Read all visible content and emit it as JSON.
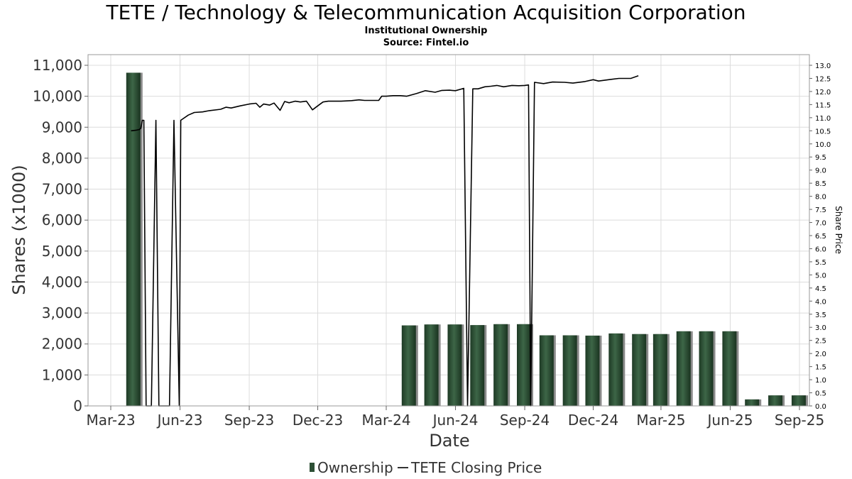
{
  "chart_data": {
    "type": "bar+line",
    "title": "TETE / Technology & Telecommunication Acquisition Corporation",
    "subtitle": "Institutional Ownership",
    "source": "Source: Fintel.io",
    "xlabel": "Date",
    "ylabel": "Shares (x1000)",
    "y2label": "Share Price",
    "ylim": [
      0,
      11000
    ],
    "y2lim": [
      0,
      13
    ],
    "grid": true,
    "legend_position": "bottom-center",
    "x_ticks": [
      {
        "label": "Mar-23",
        "date": "2023-03-01"
      },
      {
        "label": "Jun-23",
        "date": "2023-06-01"
      },
      {
        "label": "Sep-23",
        "date": "2023-09-01"
      },
      {
        "label": "Dec-23",
        "date": "2023-12-01"
      },
      {
        "label": "Mar-24",
        "date": "2024-03-01"
      },
      {
        "label": "Jun-24",
        "date": "2024-06-01"
      },
      {
        "label": "Sep-24",
        "date": "2024-09-01"
      },
      {
        "label": "Dec-24",
        "date": "2024-12-01"
      },
      {
        "label": "Mar-25",
        "date": "2025-03-01"
      },
      {
        "label": "Jun-25",
        "date": "2025-06-01"
      },
      {
        "label": "Sep-25",
        "date": "2025-09-01"
      }
    ],
    "y_ticks": [
      "0",
      "1,000",
      "2,000",
      "3,000",
      "4,000",
      "5,000",
      "6,000",
      "7,000",
      "8,000",
      "9,000",
      "10,000",
      "11,000"
    ],
    "y2_ticks": [
      "0.0",
      "0.5",
      "1.0",
      "1.5",
      "2.0",
      "2.5",
      "3.0",
      "3.5",
      "4.0",
      "4.5",
      "5.0",
      "5.5",
      "6.0",
      "6.5",
      "7.0",
      "7.5",
      "8.0",
      "8.5",
      "9.0",
      "9.5",
      "10.0",
      "10.5",
      "11.0",
      "11.5",
      "12.0",
      "12.5",
      "13.0"
    ],
    "series": [
      {
        "name": "Ownership",
        "kind": "bar",
        "color": "#2d4f35",
        "points": [
          {
            "date": "2023-03-31",
            "value": 10760
          },
          {
            "date": "2024-03-31",
            "value": 2600
          },
          {
            "date": "2024-04-30",
            "value": 2630
          },
          {
            "date": "2024-05-31",
            "value": 2630
          },
          {
            "date": "2024-06-30",
            "value": 2610
          },
          {
            "date": "2024-07-31",
            "value": 2640
          },
          {
            "date": "2024-08-31",
            "value": 2640
          },
          {
            "date": "2024-09-30",
            "value": 2280
          },
          {
            "date": "2024-10-31",
            "value": 2280
          },
          {
            "date": "2024-11-30",
            "value": 2270
          },
          {
            "date": "2024-12-31",
            "value": 2340
          },
          {
            "date": "2025-01-31",
            "value": 2320
          },
          {
            "date": "2025-02-28",
            "value": 2320
          },
          {
            "date": "2025-03-31",
            "value": 2410
          },
          {
            "date": "2025-04-30",
            "value": 2410
          },
          {
            "date": "2025-05-31",
            "value": 2410
          },
          {
            "date": "2025-06-30",
            "value": 210
          },
          {
            "date": "2025-07-31",
            "value": 340
          },
          {
            "date": "2025-08-31",
            "value": 340
          }
        ]
      },
      {
        "name": "TETE Closing Price",
        "kind": "line",
        "color": "#000000",
        "points": [
          {
            "date": "2023-03-28",
            "value": 10.5
          },
          {
            "date": "2023-04-03",
            "value": 10.52
          },
          {
            "date": "2023-04-08",
            "value": 10.55
          },
          {
            "date": "2023-04-10",
            "value": 10.6
          },
          {
            "date": "2023-04-12",
            "value": 10.9
          },
          {
            "date": "2023-04-14",
            "value": 10.9
          },
          {
            "date": "2023-04-17",
            "value": 0
          },
          {
            "date": "2023-04-24",
            "value": 0
          },
          {
            "date": "2023-04-30",
            "value": 10.9
          },
          {
            "date": "2023-05-04",
            "value": 0
          },
          {
            "date": "2023-05-18",
            "value": 0
          },
          {
            "date": "2023-05-24",
            "value": 10.9
          },
          {
            "date": "2023-05-31",
            "value": 0
          },
          {
            "date": "2023-06-02",
            "value": 10.9
          },
          {
            "date": "2023-06-12",
            "value": 11.1
          },
          {
            "date": "2023-06-20",
            "value": 11.2
          },
          {
            "date": "2023-07-01",
            "value": 11.22
          },
          {
            "date": "2023-07-10",
            "value": 11.27
          },
          {
            "date": "2023-07-25",
            "value": 11.32
          },
          {
            "date": "2023-08-01",
            "value": 11.4
          },
          {
            "date": "2023-08-08",
            "value": 11.37
          },
          {
            "date": "2023-08-20",
            "value": 11.45
          },
          {
            "date": "2023-09-01",
            "value": 11.52
          },
          {
            "date": "2023-09-10",
            "value": 11.55
          },
          {
            "date": "2023-09-15",
            "value": 11.4
          },
          {
            "date": "2023-09-20",
            "value": 11.52
          },
          {
            "date": "2023-09-28",
            "value": 11.48
          },
          {
            "date": "2023-10-04",
            "value": 11.56
          },
          {
            "date": "2023-10-12",
            "value": 11.28
          },
          {
            "date": "2023-10-18",
            "value": 11.62
          },
          {
            "date": "2023-10-24",
            "value": 11.57
          },
          {
            "date": "2023-11-01",
            "value": 11.63
          },
          {
            "date": "2023-11-08",
            "value": 11.6
          },
          {
            "date": "2023-11-16",
            "value": 11.63
          },
          {
            "date": "2023-11-24",
            "value": 11.3
          },
          {
            "date": "2023-12-01",
            "value": 11.45
          },
          {
            "date": "2023-12-08",
            "value": 11.6
          },
          {
            "date": "2023-12-15",
            "value": 11.63
          },
          {
            "date": "2024-01-01",
            "value": 11.63
          },
          {
            "date": "2024-01-15",
            "value": 11.65
          },
          {
            "date": "2024-01-25",
            "value": 11.68
          },
          {
            "date": "2024-02-01",
            "value": 11.66
          },
          {
            "date": "2024-02-20",
            "value": 11.66
          },
          {
            "date": "2024-02-24",
            "value": 11.82
          },
          {
            "date": "2024-03-01",
            "value": 11.82
          },
          {
            "date": "2024-03-10",
            "value": 11.84
          },
          {
            "date": "2024-03-20",
            "value": 11.84
          },
          {
            "date": "2024-03-28",
            "value": 11.82
          },
          {
            "date": "2024-04-10",
            "value": 11.92
          },
          {
            "date": "2024-04-22",
            "value": 12.03
          },
          {
            "date": "2024-05-05",
            "value": 11.97
          },
          {
            "date": "2024-05-14",
            "value": 12.04
          },
          {
            "date": "2024-05-24",
            "value": 12.05
          },
          {
            "date": "2024-06-01",
            "value": 12.03
          },
          {
            "date": "2024-06-12",
            "value": 12.12
          },
          {
            "date": "2024-06-17",
            "value": 0
          },
          {
            "date": "2024-06-24",
            "value": 12.1
          },
          {
            "date": "2024-07-01",
            "value": 12.1
          },
          {
            "date": "2024-07-10",
            "value": 12.18
          },
          {
            "date": "2024-07-18",
            "value": 12.2
          },
          {
            "date": "2024-07-26",
            "value": 12.23
          },
          {
            "date": "2024-08-04",
            "value": 12.18
          },
          {
            "date": "2024-08-15",
            "value": 12.23
          },
          {
            "date": "2024-08-24",
            "value": 12.22
          },
          {
            "date": "2024-09-01",
            "value": 12.23
          },
          {
            "date": "2024-09-06",
            "value": 12.25
          },
          {
            "date": "2024-09-09",
            "value": 0
          },
          {
            "date": "2024-09-14",
            "value": 12.35
          },
          {
            "date": "2024-09-26",
            "value": 12.3
          },
          {
            "date": "2024-10-08",
            "value": 12.36
          },
          {
            "date": "2024-10-24",
            "value": 12.35
          },
          {
            "date": "2024-11-04",
            "value": 12.32
          },
          {
            "date": "2024-11-20",
            "value": 12.38
          },
          {
            "date": "2024-12-01",
            "value": 12.45
          },
          {
            "date": "2024-12-08",
            "value": 12.4
          },
          {
            "date": "2024-12-24",
            "value": 12.46
          },
          {
            "date": "2025-01-04",
            "value": 12.5
          },
          {
            "date": "2025-01-20",
            "value": 12.5
          },
          {
            "date": "2025-01-30",
            "value": 12.6
          }
        ]
      }
    ]
  }
}
